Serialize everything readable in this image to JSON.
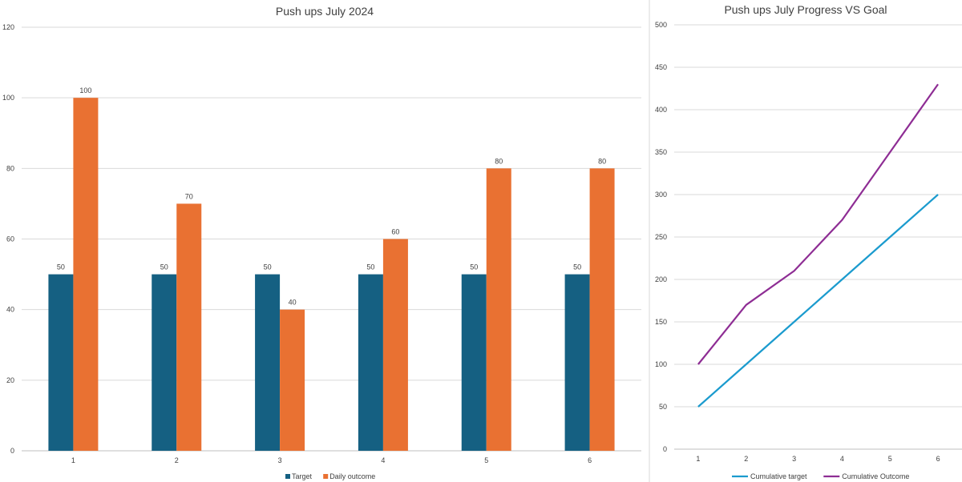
{
  "chart_data": [
    {
      "type": "bar",
      "title": "Push ups July 2024",
      "categories": [
        "1",
        "2",
        "3",
        "4",
        "5",
        "6"
      ],
      "series": [
        {
          "name": "Target",
          "values": [
            50,
            50,
            50,
            50,
            50,
            50
          ],
          "color": "#156082"
        },
        {
          "name": "Daily outcome",
          "values": [
            100,
            70,
            40,
            60,
            80,
            80
          ],
          "color": "#E97132"
        }
      ],
      "ylim": [
        0,
        120
      ],
      "yticks": [
        "0",
        "20",
        "40",
        "60",
        "80",
        "100",
        "120"
      ],
      "xlabel": "",
      "ylabel": "",
      "legend": "bottom",
      "grid": true
    },
    {
      "type": "line",
      "title": "Push ups July Progress VS Goal",
      "categories": [
        "1",
        "2",
        "3",
        "4",
        "5",
        "6"
      ],
      "series": [
        {
          "name": "Cumulative target",
          "values": [
            50,
            100,
            150,
            200,
            250,
            300
          ],
          "color": "#1B9BCE"
        },
        {
          "name": "Cumulative Outcome",
          "values": [
            100,
            170,
            210,
            270,
            350,
            430
          ],
          "color": "#8E2D94"
        }
      ],
      "ylim": [
        0,
        500
      ],
      "yticks": [
        "0",
        "50",
        "100",
        "150",
        "200",
        "250",
        "300",
        "350",
        "400",
        "450",
        "500"
      ],
      "xlabel": "",
      "ylabel": "",
      "legend": "bottom",
      "grid": true
    }
  ]
}
